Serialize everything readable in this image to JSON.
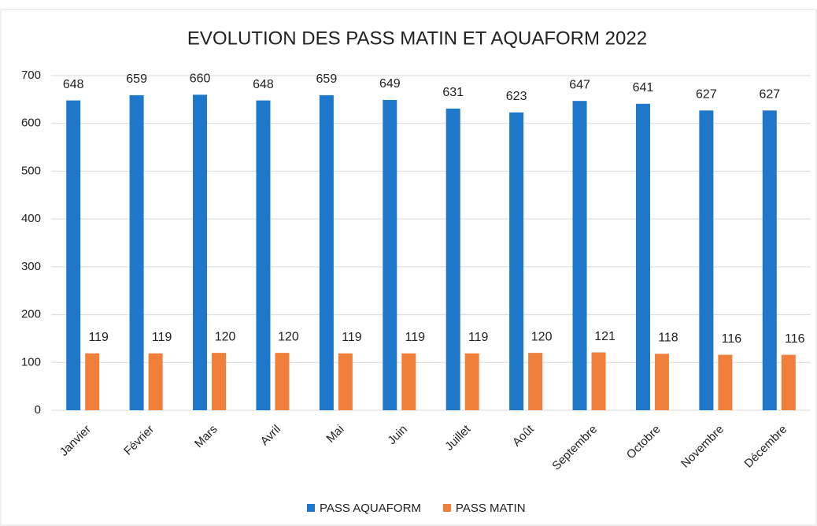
{
  "chart_data": {
    "type": "bar",
    "title": "EVOLUTION DES PASS MATIN ET AQUAFORM 2022",
    "categories": [
      "Janvier",
      "Février",
      "Mars",
      "Avril",
      "Mai",
      "Juin",
      "Juillet",
      "Août",
      "Septembre",
      "Octobre",
      "Novembre",
      "Décembre"
    ],
    "series": [
      {
        "name": "PASS AQUAFORM",
        "color": "#1f77c9",
        "values": [
          648,
          659,
          660,
          648,
          659,
          649,
          631,
          623,
          647,
          641,
          627,
          627
        ]
      },
      {
        "name": "PASS MATIN",
        "color": "#f07f3c",
        "values": [
          119,
          119,
          120,
          120,
          119,
          119,
          119,
          120,
          121,
          118,
          116,
          116
        ]
      }
    ],
    "ylim": [
      0,
      700
    ],
    "yticks": [
      0,
      100,
      200,
      300,
      400,
      500,
      600,
      700
    ],
    "grid": true,
    "legend": "bottom",
    "data_labels": true
  }
}
